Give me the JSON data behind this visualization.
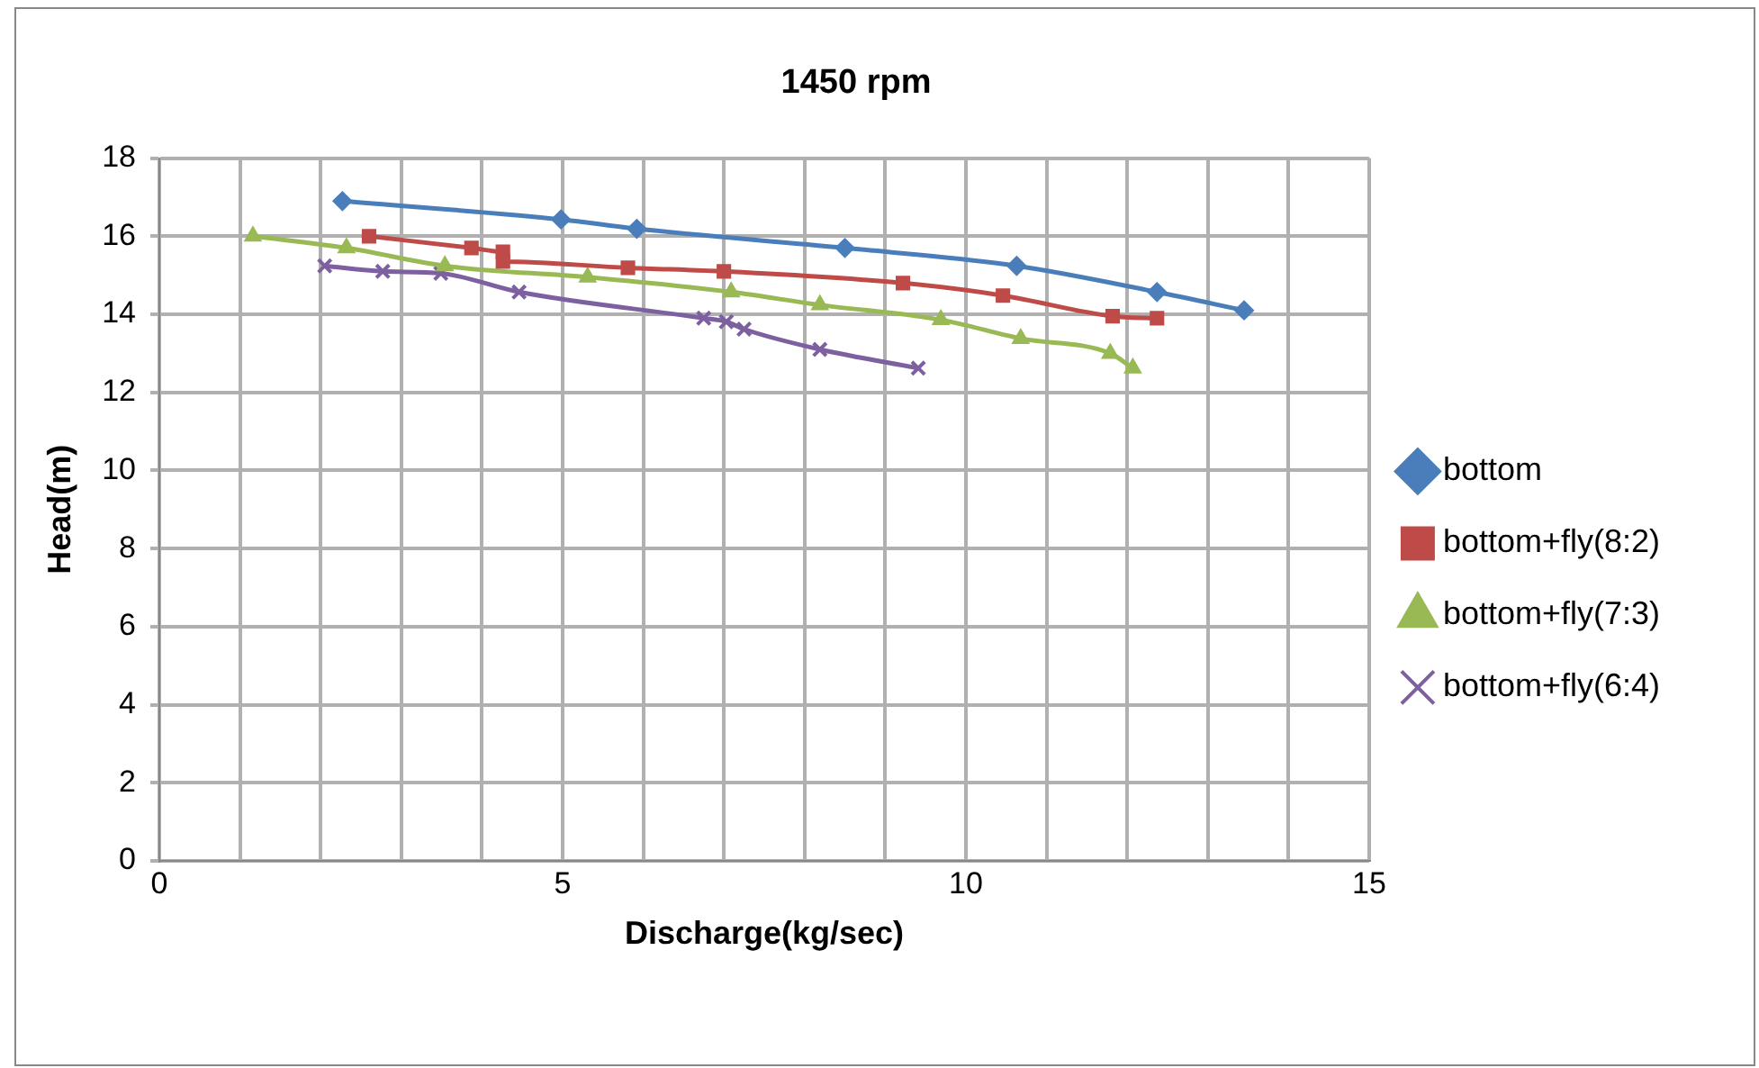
{
  "chart_data": {
    "type": "line",
    "title": "1450 rpm",
    "xlabel": "Discharge(kg/sec)",
    "ylabel": "Head(m)",
    "xlim": [
      0,
      15
    ],
    "ylim": [
      0,
      18
    ],
    "xticks": [
      0,
      {
        "value": 1,
        "label": null
      },
      {
        "value": 2,
        "label": null
      },
      {
        "value": 3,
        "label": null
      },
      {
        "value": 4,
        "label": null
      },
      5,
      {
        "value": 6,
        "label": null
      },
      {
        "value": 7,
        "label": null
      },
      {
        "value": 8,
        "label": null
      },
      {
        "value": 9,
        "label": null
      },
      10,
      {
        "value": 11,
        "label": null
      },
      {
        "value": 12,
        "label": null
      },
      {
        "value": 13,
        "label": null
      },
      {
        "value": 14,
        "label": null
      },
      15
    ],
    "yticks": [
      0,
      2,
      4,
      6,
      8,
      10,
      12,
      14,
      16,
      18
    ],
    "grid": true,
    "legend": "right",
    "line_style": "solid",
    "series": [
      {
        "name": "bottom",
        "color": "#4a7ebb",
        "marker": "diamond",
        "x": [
          2.27,
          4.98,
          5.92,
          8.5,
          10.63,
          12.37,
          13.45
        ],
        "values": [
          16.9,
          16.43,
          16.19,
          15.7,
          15.24,
          14.57,
          14.1
        ]
      },
      {
        "name": "bottom+fly(8:2)",
        "color": "#be4b48",
        "marker": "square",
        "x": [
          2.6,
          3.87,
          4.26,
          4.26,
          5.81,
          7.0,
          9.22,
          10.46,
          11.82,
          12.37
        ],
        "values": [
          16.0,
          15.7,
          15.6,
          15.35,
          15.19,
          15.1,
          14.8,
          14.48,
          13.95,
          13.9
        ]
      },
      {
        "name": "bottom+fly(7:3)",
        "color": "#98b954",
        "marker": "triangle",
        "x": [
          1.16,
          2.32,
          3.54,
          5.31,
          7.09,
          8.19,
          9.69,
          10.68,
          11.79,
          12.07
        ],
        "values": [
          16.0,
          15.7,
          15.24,
          14.95,
          14.57,
          14.24,
          13.86,
          13.38,
          13.0,
          12.62
        ]
      },
      {
        "name": "bottom+fly(6:4)",
        "color": "#7d60a0",
        "marker": "cross",
        "x": [
          2.05,
          2.77,
          3.49,
          4.46,
          6.75,
          7.03,
          7.25,
          8.19,
          9.41
        ],
        "values": [
          15.24,
          15.1,
          15.05,
          14.57,
          13.9,
          13.81,
          13.62,
          13.1,
          12.62
        ]
      }
    ]
  }
}
